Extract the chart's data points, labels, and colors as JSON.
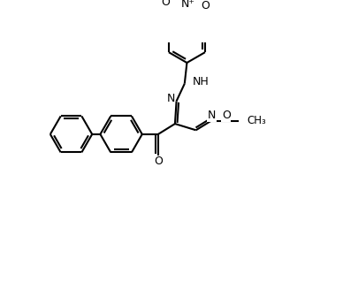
{
  "bg_color": "#ffffff",
  "line_color": "#000000",
  "lw": 1.5,
  "figsize": [
    3.88,
    3.18
  ],
  "dpi": 100,
  "xlim": [
    0,
    10
  ],
  "ylim": [
    0,
    8.2
  ],
  "r": 0.72,
  "dbo": 0.09,
  "fs": 8.5
}
